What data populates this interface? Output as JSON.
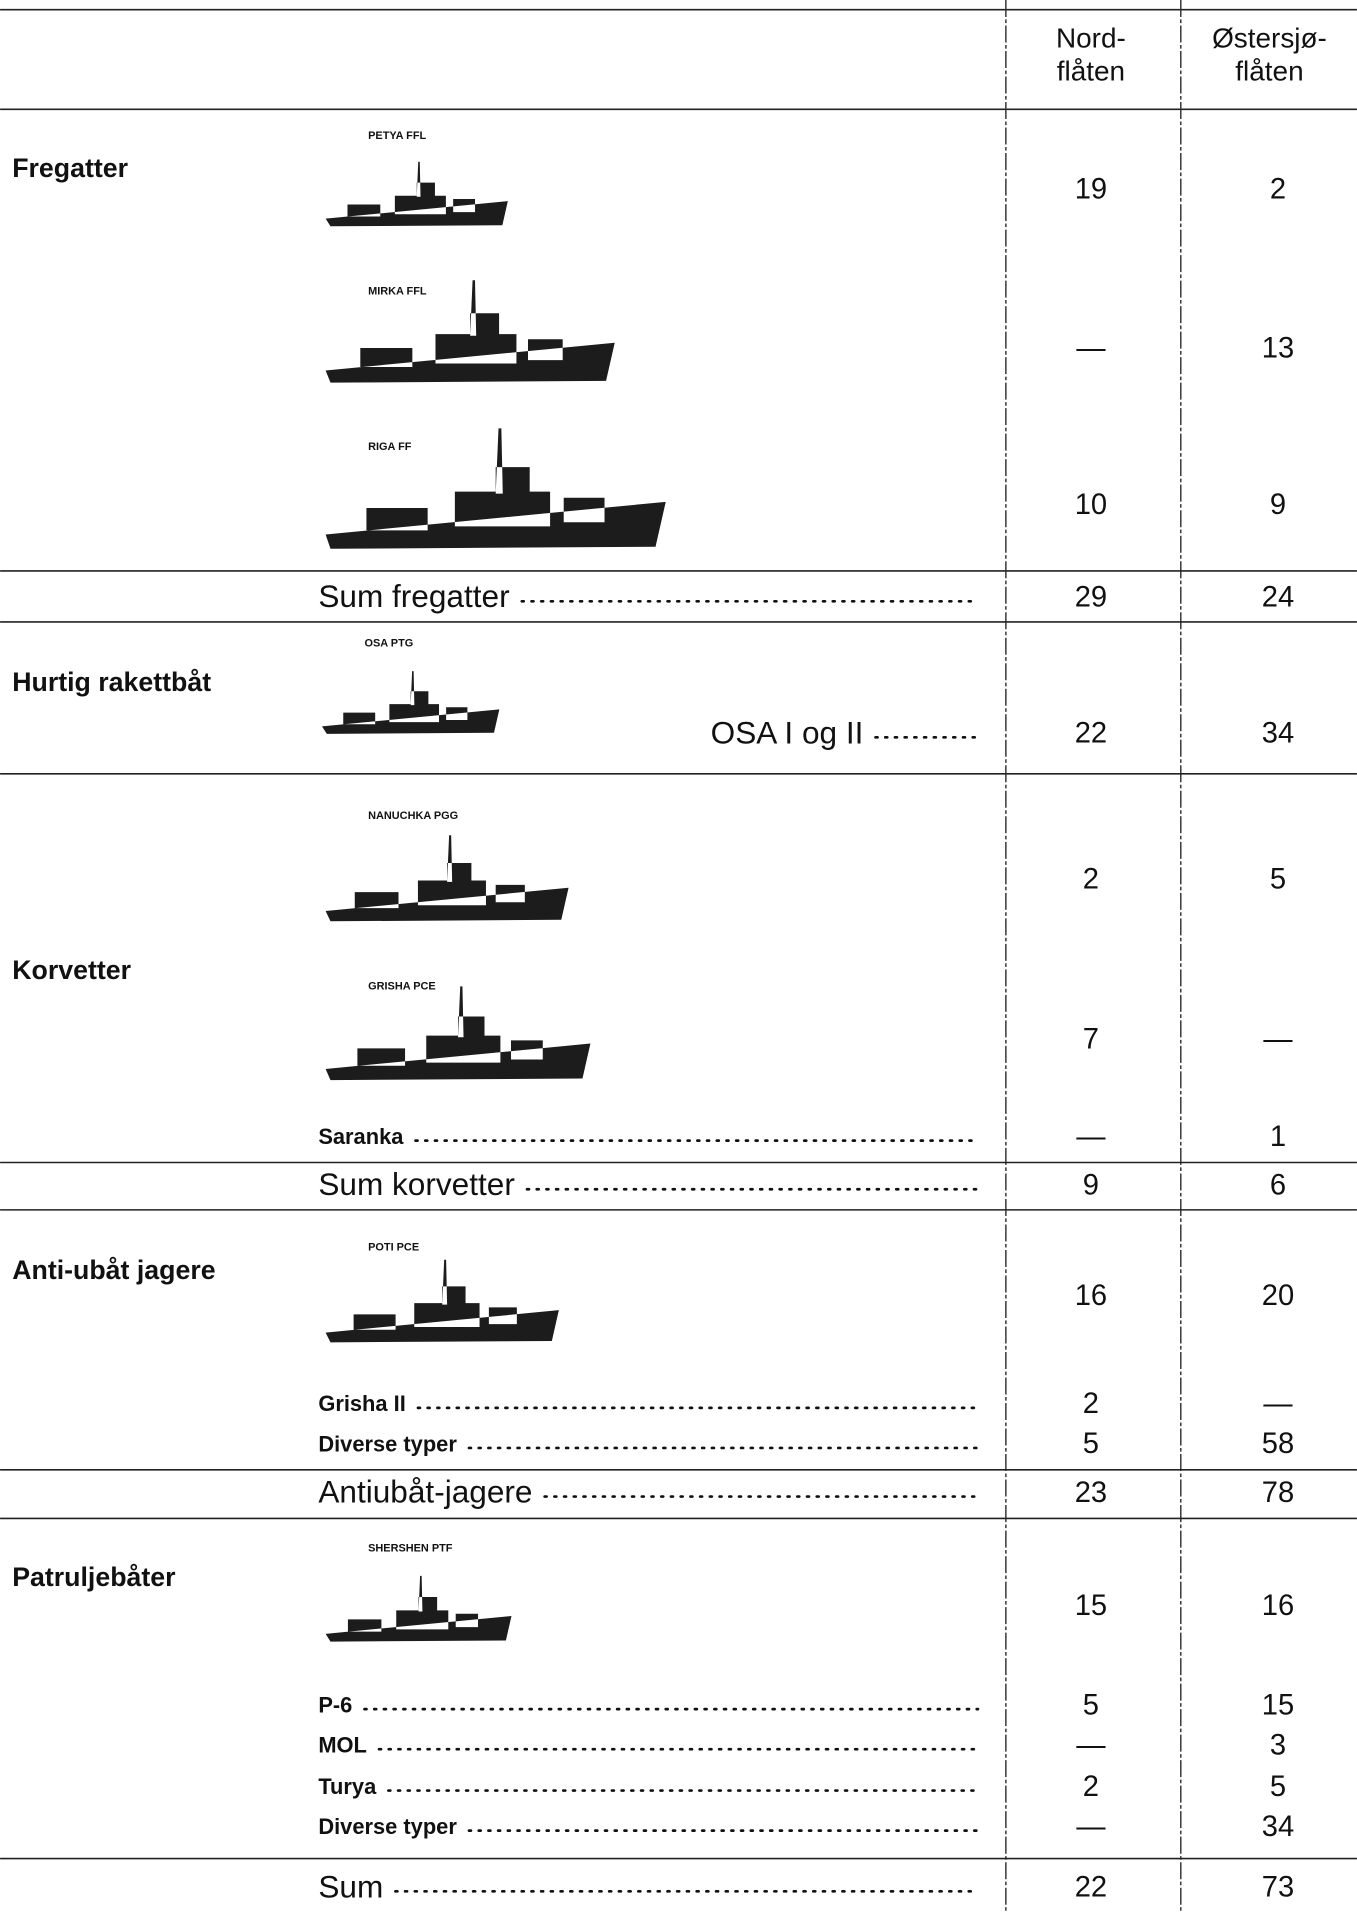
{
  "header": {
    "columns": [
      [
        "Nord-",
        "flåten"
      ],
      [
        "Østersjø-",
        "flåten"
      ]
    ]
  },
  "sections": [
    {
      "title": "Fregatter",
      "rows": [
        {
          "ship": "PETYA FFL",
          "nord": 19,
          "ost": 2
        },
        {
          "ship": "MIRKA FFL",
          "nord": "—",
          "ost": 13
        },
        {
          "ship": "RIGA FF",
          "nord": 10,
          "ost": 9
        }
      ],
      "total": {
        "label": "Sum fregatter",
        "nord": 29,
        "ost": 24
      }
    },
    {
      "title": "Hurtig rakettbåt",
      "rows": [
        {
          "ship": "OSA PTG",
          "label": "OSA I og II",
          "nord": 22,
          "ost": 34
        }
      ]
    },
    {
      "title": "Korvetter",
      "rows": [
        {
          "ship": "NANUCHKA PGG",
          "nord": 2,
          "ost": 5
        },
        {
          "ship": "GRISHA PCE",
          "nord": 7,
          "ost": "—"
        },
        {
          "label": "Saranka",
          "nord": "—",
          "ost": 1
        }
      ],
      "total": {
        "label": "Sum korvetter",
        "nord": 9,
        "ost": 6
      }
    },
    {
      "title": "Anti-ubåt jagere",
      "rows": [
        {
          "ship": "POTI PCE",
          "nord": 16,
          "ost": 20
        },
        {
          "label": "Grisha II",
          "nord": 2,
          "ost": "—"
        },
        {
          "label": "Diverse typer",
          "nord": 5,
          "ost": 58
        }
      ],
      "total": {
        "label": "Antiubåt-jagere",
        "nord": 23,
        "ost": 78
      }
    },
    {
      "title": "Patruljebåter",
      "rows": [
        {
          "ship": "SHERSHEN PTF",
          "nord": 15,
          "ost": 16
        },
        {
          "label": "P-6",
          "nord": 5,
          "ost": 15
        },
        {
          "label": "MOL",
          "nord": "—",
          "ost": 3
        },
        {
          "label": "Turya",
          "nord": 2,
          "ost": 5
        },
        {
          "label": "Diverse typer",
          "nord": "—",
          "ost": 34
        }
      ],
      "total": {
        "label": "Sum",
        "nord": 22,
        "ost": 73
      }
    }
  ]
}
